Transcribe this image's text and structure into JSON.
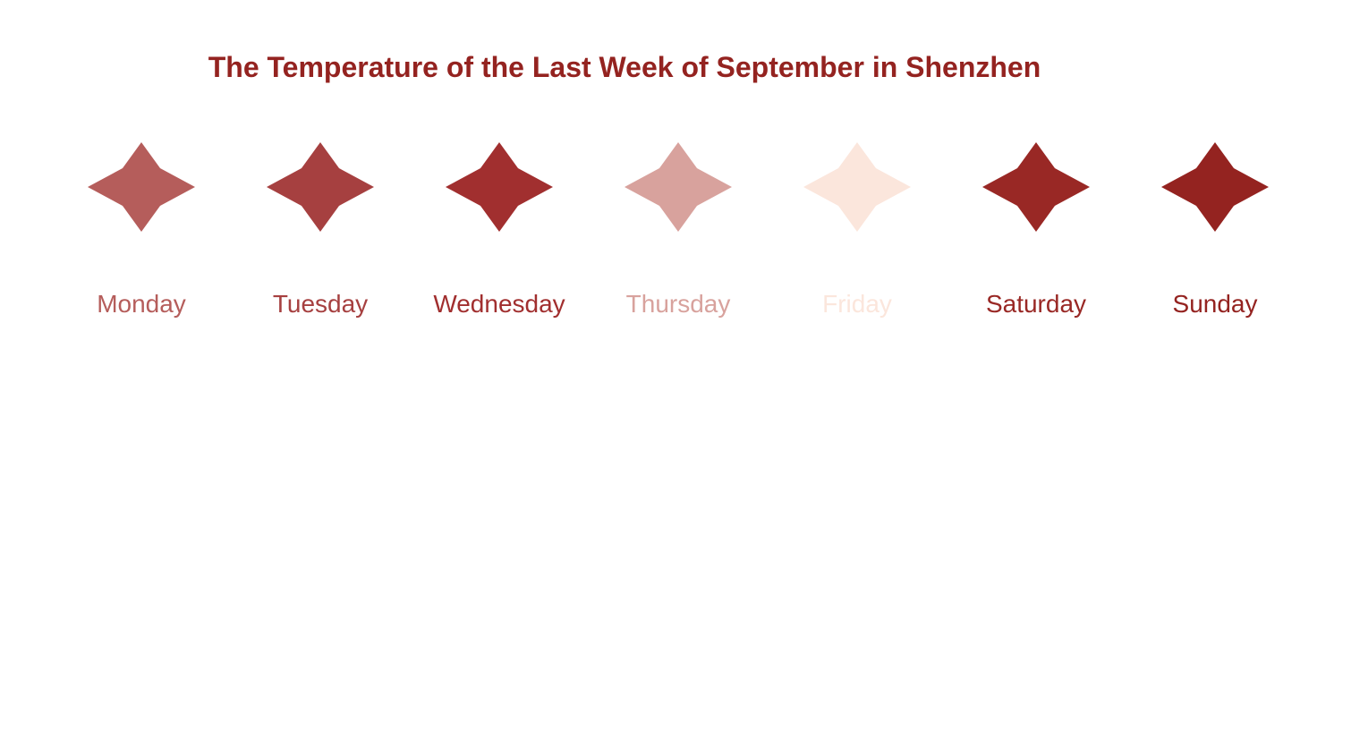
{
  "chart_data": {
    "type": "pictorial",
    "title": "The Temperature of the Last Week of September in Shenzhen",
    "title_color": "#942320",
    "categories": [
      "Monday",
      "Tuesday",
      "Wednesday",
      "Thursday",
      "Friday",
      "Saturday",
      "Sunday"
    ],
    "colors": [
      "#b55d5b",
      "#a64040",
      "#a12f2f",
      "#d8a29d",
      "#fbe6dc",
      "#992825",
      "#942320"
    ],
    "symbol": "four-point-star-icon",
    "legend": "none",
    "grid": false
  }
}
